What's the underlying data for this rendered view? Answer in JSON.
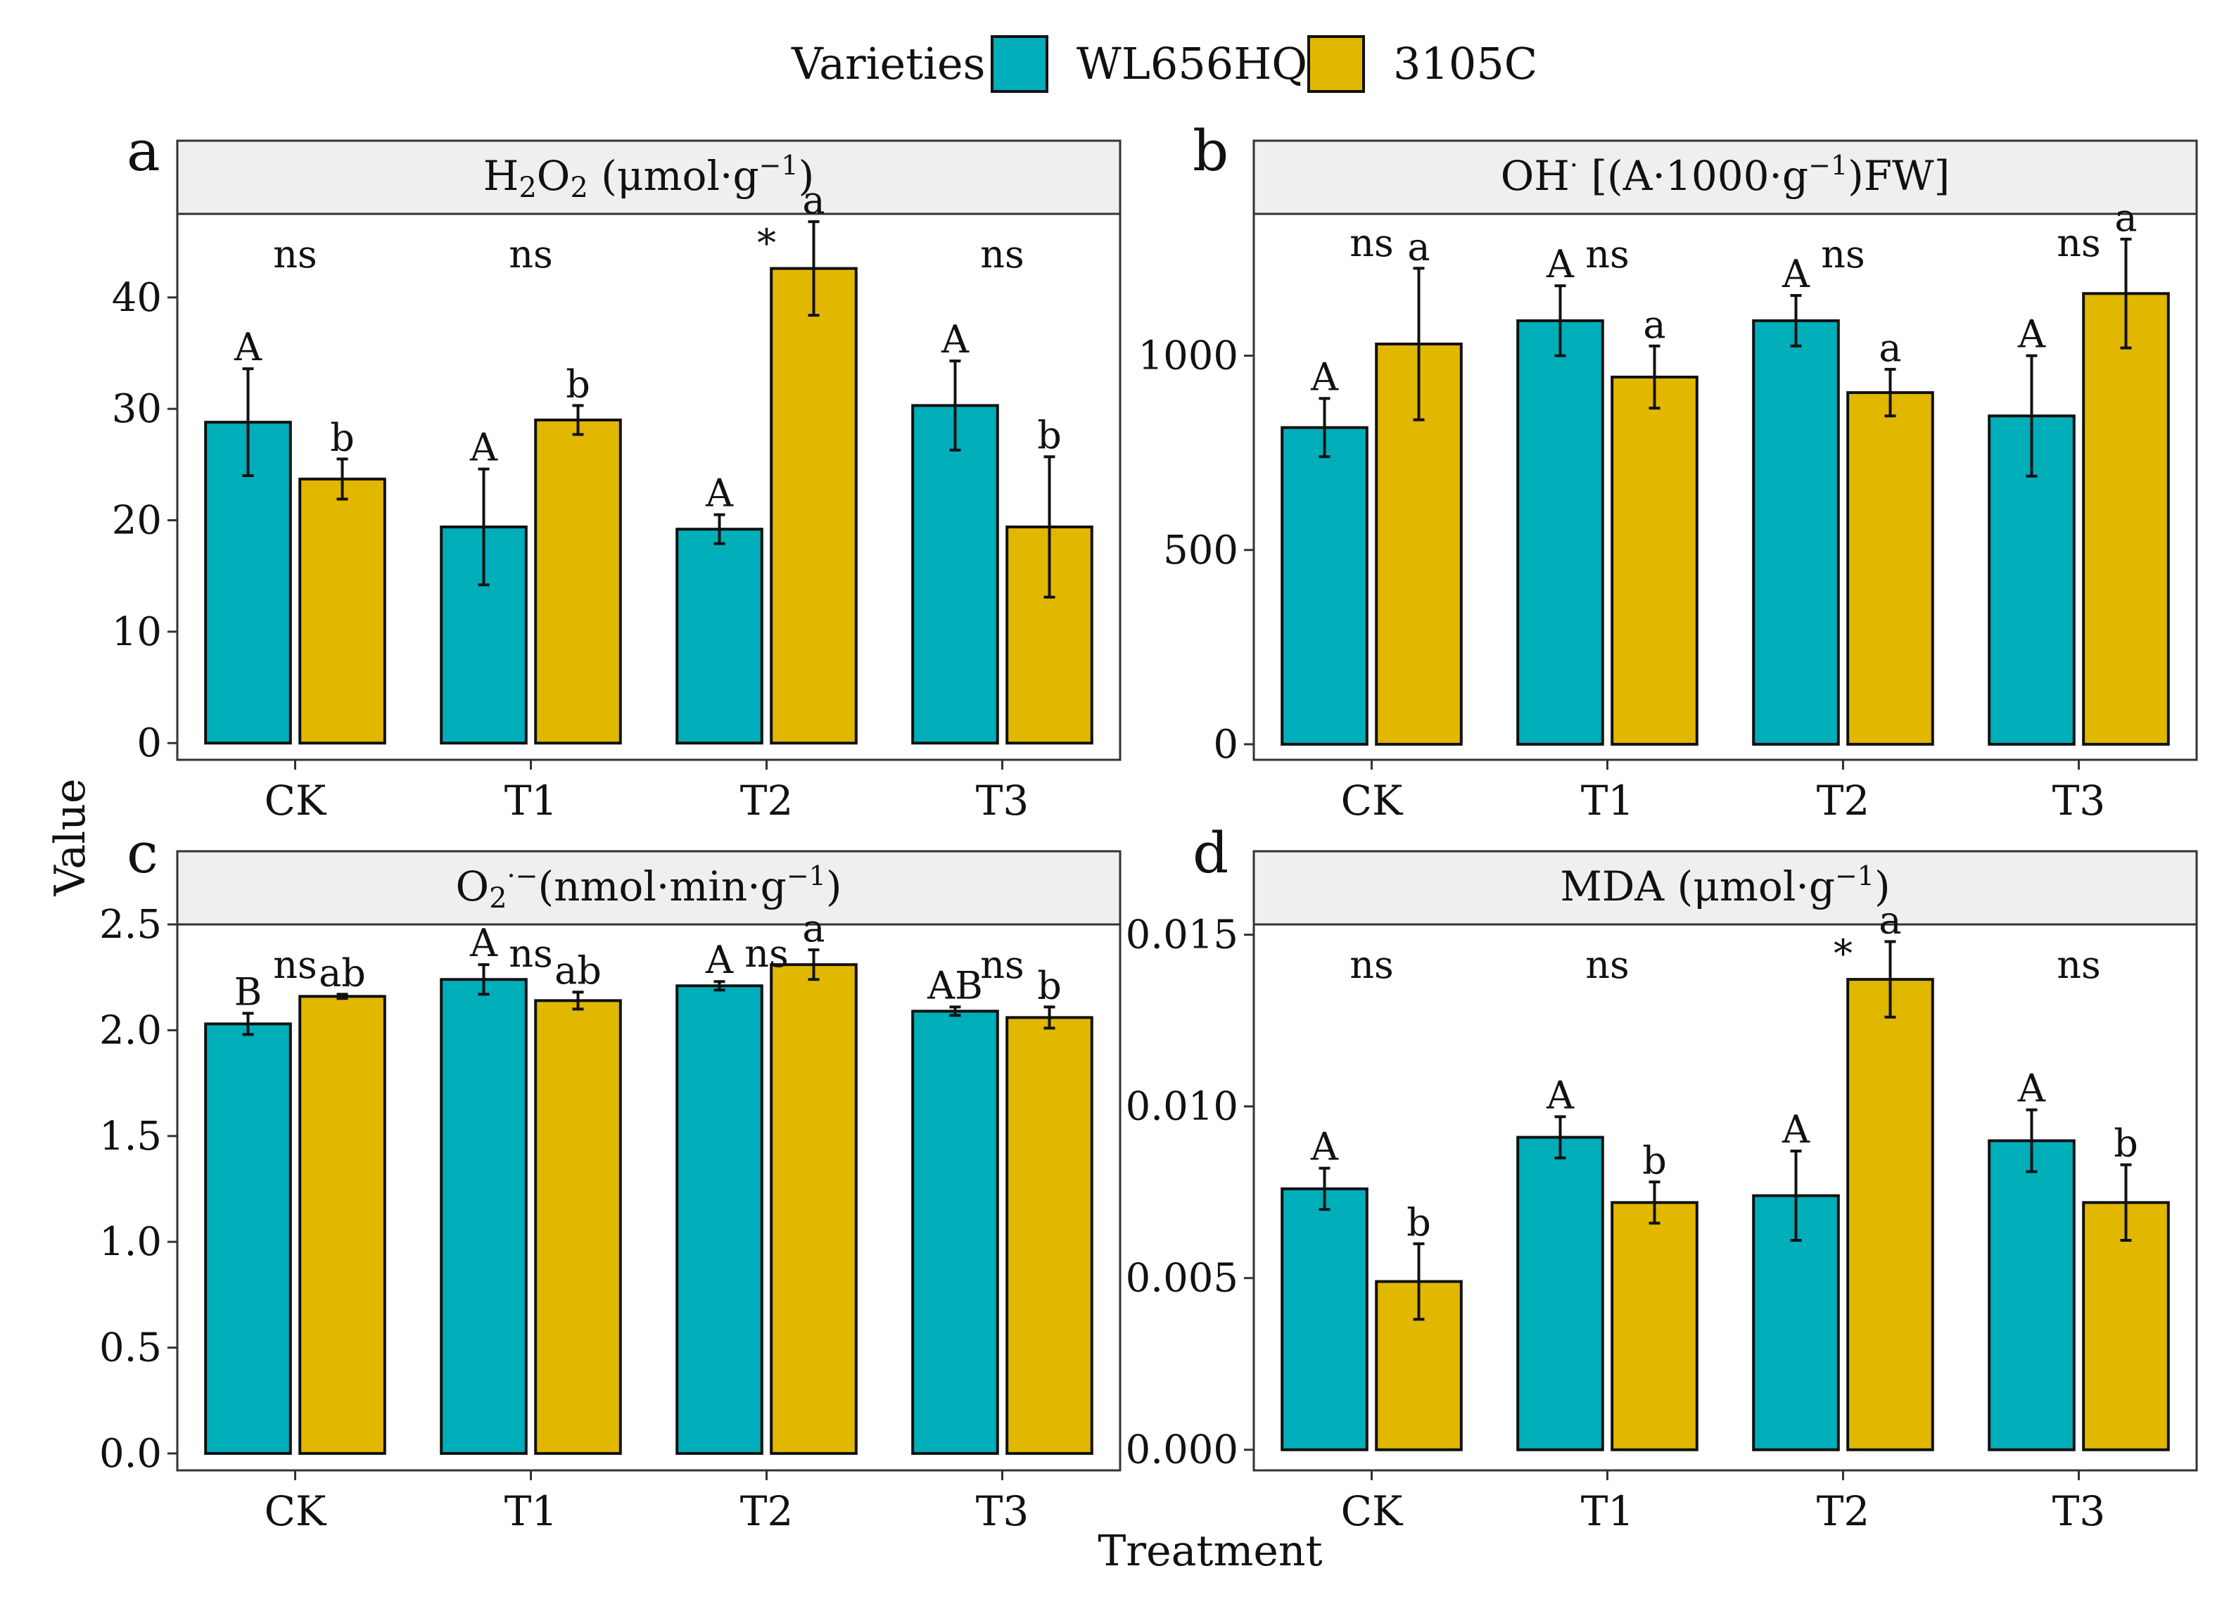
{
  "legend": {
    "title": "Varieties",
    "entries": [
      {
        "name": "WL656HQ",
        "color": "#00AEBA"
      },
      {
        "name": "3105C",
        "color": "#E2B700"
      }
    ]
  },
  "axis": {
    "xlabel": "Treatment",
    "ylabel": "Value"
  },
  "chart_data": [
    {
      "panel": "a",
      "type": "bar",
      "title_base": "H",
      "title_sub": "2",
      "title_base2": "O",
      "title_sub2": "2",
      "title_rest": " (μmol·g",
      "title_sup": "−1",
      "title_end": ")",
      "categories": [
        "CK",
        "T1",
        "T2",
        "T3"
      ],
      "ylim": [
        -1.5,
        47.5
      ],
      "yticks": [
        0,
        10,
        20,
        30,
        40
      ],
      "series": [
        {
          "name": "WL656HQ",
          "values": [
            28.8,
            19.4,
            19.2,
            30.3
          ],
          "errors": [
            4.8,
            5.2,
            1.3,
            4.0
          ],
          "letters": [
            "A",
            "A",
            "A",
            "A"
          ]
        },
        {
          "name": "3105C",
          "values": [
            23.7,
            29.0,
            42.6,
            19.4
          ],
          "errors": [
            1.8,
            1.3,
            4.2,
            6.3
          ],
          "letters": [
            "b",
            "b",
            "a",
            "b"
          ]
        }
      ],
      "significance": [
        "ns",
        "ns",
        "*",
        "ns"
      ]
    },
    {
      "panel": "b",
      "type": "bar",
      "title_base": "OH",
      "title_sup": "·",
      "title_rest": " [(A·1000·g",
      "title_sup2": "−1",
      "title_end": ")FW]",
      "categories": [
        "CK",
        "T1",
        "T2",
        "T3"
      ],
      "ylim": [
        -40,
        1365
      ],
      "yticks": [
        0,
        500,
        1000
      ],
      "ytick_labels": [
        "0",
        "500",
        "1000"
      ],
      "series": [
        {
          "name": "WL656HQ",
          "values": [
            815,
            1090,
            1090,
            845
          ],
          "errors": [
            75,
            90,
            65,
            155
          ],
          "letters": [
            "A",
            "A",
            "A",
            "A"
          ]
        },
        {
          "name": "3105C",
          "values": [
            1030,
            945,
            905,
            1160
          ],
          "errors": [
            195,
            80,
            60,
            140
          ],
          "letters": [
            "a",
            "a",
            "a",
            "a"
          ]
        }
      ],
      "significance": [
        "ns",
        "ns",
        "ns",
        "ns"
      ]
    },
    {
      "panel": "c",
      "type": "bar",
      "title_base": "O",
      "title_sub": "2",
      "title_sup": "·−",
      "title_rest": "(nmol·min·g",
      "title_sup2": "−1",
      "title_end": ")",
      "categories": [
        "CK",
        "T1",
        "T2",
        "T3"
      ],
      "ylim": [
        -0.08,
        2.5
      ],
      "yticks": [
        0.0,
        0.5,
        1.0,
        1.5,
        2.0,
        2.5
      ],
      "ytick_labels": [
        "0.0",
        "0.5",
        "1.0",
        "1.5",
        "2.0",
        "2.5"
      ],
      "series": [
        {
          "name": "WL656HQ",
          "values": [
            2.03,
            2.24,
            2.21,
            2.09
          ],
          "errors": [
            0.05,
            0.07,
            0.02,
            0.02
          ],
          "letters": [
            "B",
            "A",
            "A",
            "AB"
          ]
        },
        {
          "name": "3105C",
          "values": [
            2.16,
            2.14,
            2.31,
            2.06
          ],
          "errors": [
            0.01,
            0.04,
            0.07,
            0.05
          ],
          "letters": [
            "ab",
            "ab",
            "a",
            "b"
          ]
        }
      ],
      "significance": [
        "ns",
        "ns",
        "ns",
        "ns"
      ]
    },
    {
      "panel": "d",
      "type": "bar",
      "title_base": "MDA (μmol·g",
      "title_sup": "−1",
      "title_end": ")",
      "categories": [
        "CK",
        "T1",
        "T2",
        "T3"
      ],
      "ylim": [
        -0.0006,
        0.0153
      ],
      "yticks": [
        0.0,
        0.005,
        0.01,
        0.015
      ],
      "ytick_labels": [
        "0.000",
        "0.005",
        "0.010",
        "0.015"
      ],
      "series": [
        {
          "name": "WL656HQ",
          "values": [
            0.0076,
            0.0091,
            0.0074,
            0.009
          ],
          "errors": [
            0.0006,
            0.0006,
            0.0013,
            0.0009
          ],
          "letters": [
            "A",
            "A",
            "A",
            "A"
          ]
        },
        {
          "name": "3105C",
          "values": [
            0.0049,
            0.0072,
            0.0137,
            0.0072
          ],
          "errors": [
            0.0011,
            0.0006,
            0.0011,
            0.0011
          ],
          "letters": [
            "b",
            "b",
            "a",
            "b"
          ]
        }
      ],
      "significance": [
        "ns",
        "ns",
        "*",
        "ns"
      ]
    }
  ]
}
